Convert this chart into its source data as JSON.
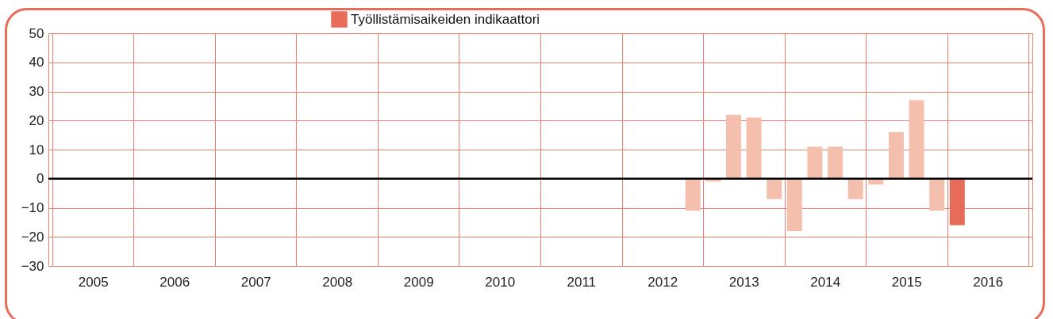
{
  "chart_data": {
    "type": "bar",
    "x": [
      2012.875,
      2013.125,
      2013.375,
      2013.625,
      2013.875,
      2014.125,
      2014.375,
      2014.625,
      2014.875,
      2015.125,
      2015.375,
      2015.625,
      2015.875,
      2016.125
    ],
    "series": [
      {
        "name": "Työllistämisaikeiden indikaattori",
        "color": "#e86c5a",
        "values": [
          -11,
          -1,
          22,
          21,
          -7,
          -18,
          11,
          11,
          -7,
          -2,
          16,
          27,
          -11,
          -16
        ],
        "colors": [
          "#f5bfae",
          "#f5bfae",
          "#f5bfae",
          "#f5bfae",
          "#f5bfae",
          "#f5bfae",
          "#f5bfae",
          "#f5bfae",
          "#f5bfae",
          "#f5bfae",
          "#f5bfae",
          "#f5bfae",
          "#f5bfae",
          "#e86c5a"
        ]
      }
    ],
    "xlim": [
      2005,
      2017
    ],
    "xticks": [
      {
        "value": 2005,
        "label": null
      },
      {
        "value": 2005.5,
        "label": "2005"
      },
      {
        "value": 2006,
        "label": null
      },
      {
        "value": 2006.5,
        "label": "2006"
      },
      {
        "value": 2007,
        "label": null
      },
      {
        "value": 2007.5,
        "label": "2007"
      },
      {
        "value": 2008,
        "label": null
      },
      {
        "value": 2008.5,
        "label": "2008"
      },
      {
        "value": 2009,
        "label": null
      },
      {
        "value": 2009.5,
        "label": "2009"
      },
      {
        "value": 2010,
        "label": null
      },
      {
        "value": 2010.5,
        "label": "2010"
      },
      {
        "value": 2011,
        "label": null
      },
      {
        "value": 2011.5,
        "label": "2011"
      },
      {
        "value": 2012,
        "label": null
      },
      {
        "value": 2012.5,
        "label": "2012"
      },
      {
        "value": 2013,
        "label": null
      },
      {
        "value": 2013.5,
        "label": "2013"
      },
      {
        "value": 2014,
        "label": null
      },
      {
        "value": 2014.5,
        "label": "2014"
      },
      {
        "value": 2015,
        "label": null
      },
      {
        "value": 2015.5,
        "label": "2015"
      },
      {
        "value": 2016,
        "label": null
      },
      {
        "value": 2016.5,
        "label": "2016"
      },
      {
        "value": 2017,
        "label": null
      }
    ],
    "ylim": [
      -30,
      50
    ],
    "yticks": [
      -30,
      -20,
      -10,
      0,
      10,
      20,
      30,
      40,
      50
    ],
    "ref_lines": [
      {
        "axis": "y",
        "value": 0,
        "color": "#000000"
      }
    ],
    "grid": true,
    "legend": "top"
  }
}
